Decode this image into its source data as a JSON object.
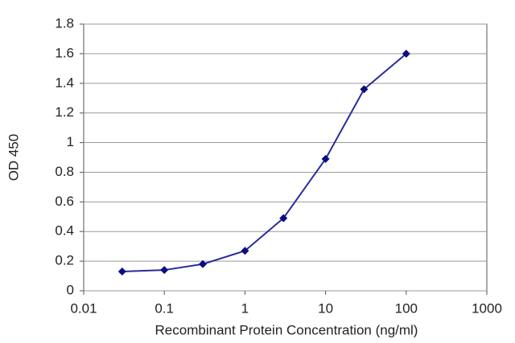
{
  "chart_data": {
    "type": "line",
    "x_label": "Recombinant Protein Concentration (ng/ml)",
    "y_label": "OD 450",
    "x": [
      0.03,
      0.1,
      0.3,
      1,
      3,
      10,
      30,
      100
    ],
    "series": [
      {
        "color": "#2a2a9c",
        "marker_color": "#0c0c80",
        "values": [
          0.13,
          0.14,
          0.18,
          0.27,
          0.49,
          0.89,
          1.36,
          1.6
        ]
      }
    ],
    "xscale": "log",
    "xlim": [
      0.01,
      1000
    ],
    "xticks": [
      0.01,
      0.1,
      1,
      10,
      100,
      1000
    ],
    "ylim": [
      0,
      1.8
    ],
    "yticks": [
      0,
      0.2,
      0.4,
      0.6,
      0.8,
      1,
      1.2,
      1.4,
      1.6,
      1.8
    ],
    "grid": true
  }
}
